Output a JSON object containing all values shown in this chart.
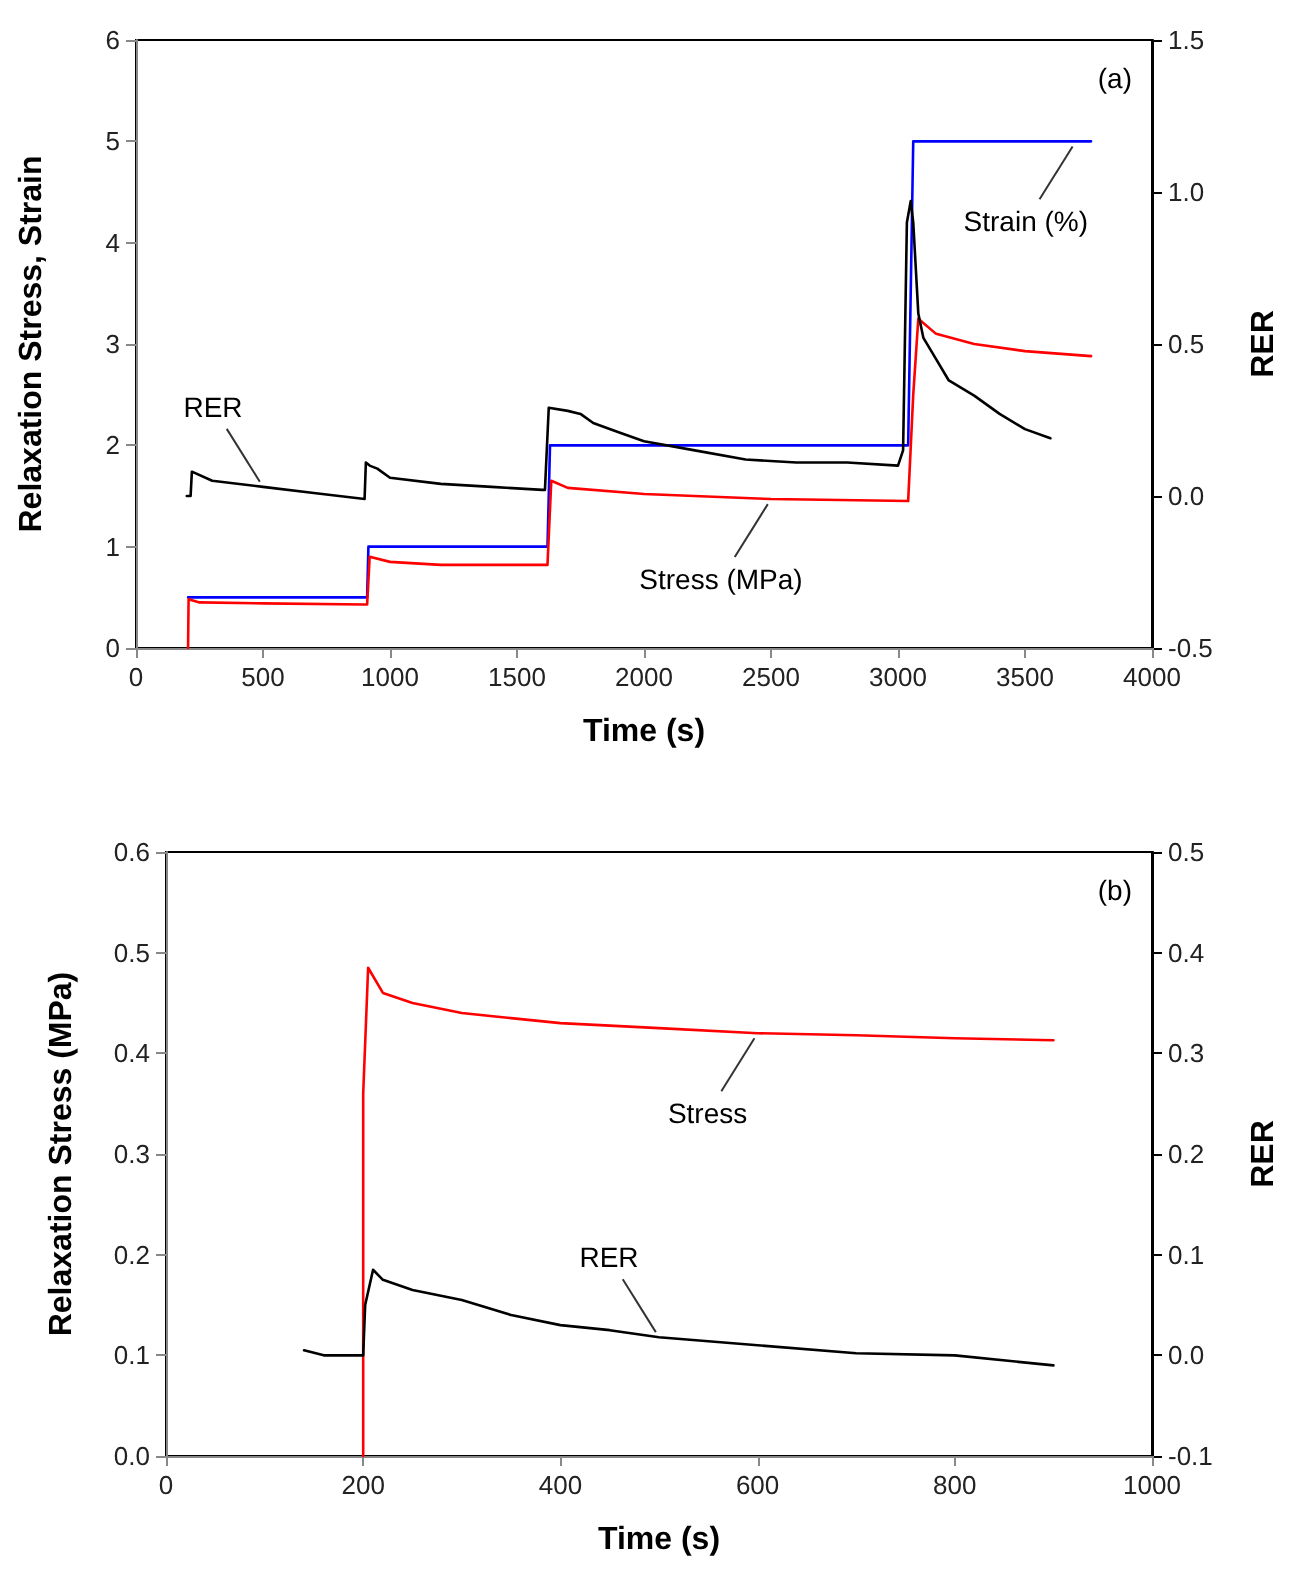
{
  "chart_data": [
    {
      "type": "line",
      "xlabel": "Time (s)",
      "ylabel": "Relaxation Stress, Strain",
      "y2label": "RER",
      "xlim": [
        0,
        4000
      ],
      "xticks": [
        0,
        500,
        1000,
        1500,
        2000,
        2500,
        3000,
        3500,
        4000
      ],
      "ylim": [
        0,
        6
      ],
      "yticks": [
        0,
        1,
        2,
        3,
        4,
        5,
        6
      ],
      "y2lim": [
        -0.5,
        1.5
      ],
      "y2ticks": [
        {
          "value": -0.5,
          "label": "-0.5"
        },
        {
          "value": 0,
          "label": "0.0"
        },
        {
          "value": 0.5,
          "label": "0.5"
        },
        {
          "value": 1,
          "label": "1.0"
        },
        {
          "value": 1.5,
          "label": "1.5"
        }
      ],
      "grid": false,
      "marker": "none",
      "line_style": "solid",
      "series": [
        {
          "color": "#0000ff",
          "x": [
            205,
            910,
            915,
            1620,
            1630,
            3040,
            3060,
            3760
          ],
          "values": [
            0.5,
            0.5,
            1,
            1,
            2,
            2,
            5,
            5
          ]
        },
        {
          "color": "#ff0000",
          "x": [
            205,
            207,
            250,
            500,
            900,
            910,
            920,
            1000,
            1200,
            1600,
            1620,
            1635,
            1700,
            2000,
            2500,
            3040,
            3060,
            3080,
            3150,
            3300,
            3500,
            3760
          ],
          "values": [
            0,
            0.48,
            0.45,
            0.44,
            0.43,
            0.43,
            0.9,
            0.85,
            0.82,
            0.82,
            0.82,
            1.65,
            1.58,
            1.52,
            1.47,
            1.45,
            2.5,
            3.25,
            3.1,
            3.0,
            2.93,
            2.88
          ]
        },
        {
          "color": "#000000",
          "axis": "y2",
          "x": [
            200,
            215,
            220,
            300,
            500,
            700,
            900,
            905,
            920,
            950,
            1000,
            1200,
            1400,
            1600,
            1610,
            1625,
            1700,
            1750,
            1800,
            1900,
            2000,
            2200,
            2400,
            2600,
            2800,
            3000,
            3020,
            3035,
            3050,
            3060,
            3080,
            3100,
            3150,
            3200,
            3300,
            3400,
            3500,
            3600
          ],
          "values": [
            0.0,
            0.0,
            0.08,
            0.05,
            0.03,
            0.01,
            -0.01,
            0.11,
            0.1,
            0.09,
            0.06,
            0.04,
            0.03,
            0.02,
            0.02,
            0.29,
            0.28,
            0.27,
            0.24,
            0.21,
            0.18,
            0.15,
            0.12,
            0.11,
            0.11,
            0.1,
            0.15,
            0.9,
            0.97,
            0.9,
            0.6,
            0.52,
            0.45,
            0.38,
            0.33,
            0.27,
            0.22,
            0.19
          ]
        }
      ],
      "annotations": [
        "(a)",
        {
          "text": "RER",
          "x": 500,
          "y": 1.59
        },
        {
          "text": "Stress (MPa)",
          "x": 2500,
          "y": 1.47
        },
        {
          "text": "Strain (%)",
          "x": 3700,
          "y": 5
        }
      ]
    },
    {
      "type": "line",
      "xlabel": "Time (s)",
      "ylabel": "Relaxation Stress (MPa)",
      "y2label": "RER",
      "xlim": [
        0,
        1000
      ],
      "xticks": [
        0,
        200,
        400,
        600,
        800,
        1000
      ],
      "ylim": [
        0,
        0.6
      ],
      "yticks": [
        {
          "value": 0,
          "label": "0.0"
        },
        {
          "value": 0.1,
          "label": "0.1"
        },
        {
          "value": 0.2,
          "label": "0.2"
        },
        {
          "value": 0.3,
          "label": "0.3"
        },
        {
          "value": 0.4,
          "label": "0.4"
        },
        {
          "value": 0.5,
          "label": "0.5"
        },
        {
          "value": 0.6,
          "label": "0.6"
        }
      ],
      "y2lim": [
        -0.1,
        0.5
      ],
      "y2ticks": [
        {
          "value": -0.1,
          "label": "-0.1"
        },
        {
          "value": 0,
          "label": "0.0"
        },
        {
          "value": 0.1,
          "label": "0.1"
        },
        {
          "value": 0.2,
          "label": "0.2"
        },
        {
          "value": 0.3,
          "label": "0.3"
        },
        {
          "value": 0.4,
          "label": "0.4"
        },
        {
          "value": 0.5,
          "label": "0.5"
        }
      ],
      "grid": false,
      "marker": "none",
      "line_style": "solid",
      "series": [
        {
          "color": "#ff0000",
          "x": [
            200,
            200,
            205,
            220,
            250,
            300,
            350,
            400,
            500,
            600,
            700,
            800,
            900
          ],
          "values": [
            0,
            0.36,
            0.485,
            0.46,
            0.45,
            0.44,
            0.435,
            0.43,
            0.425,
            0.42,
            0.418,
            0.415,
            0.413
          ]
        },
        {
          "color": "#000000",
          "axis": "y2",
          "x": [
            140,
            160,
            200,
            202,
            210,
            220,
            250,
            300,
            350,
            400,
            450,
            500,
            600,
            700,
            800,
            900
          ],
          "values": [
            0.005,
            0.0,
            0.0,
            0.05,
            0.085,
            0.075,
            0.065,
            0.055,
            0.04,
            0.03,
            0.025,
            0.018,
            0.01,
            0.002,
            0.0,
            -0.01
          ]
        }
      ],
      "annotations": [
        "(b)",
        {
          "text": "Stress",
          "x": 600,
          "y": 0.42
        },
        {
          "text": "RER",
          "x": 500,
          "y": 0.118
        }
      ]
    }
  ]
}
